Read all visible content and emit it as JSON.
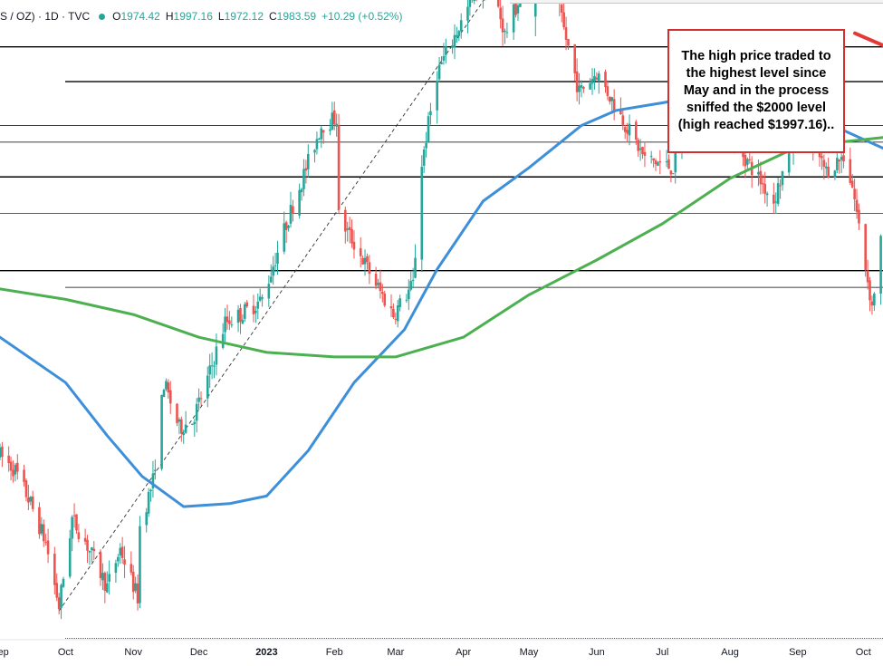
{
  "legend": {
    "symbol": "S / OZ) · 1D · TVC",
    "open_label": "O",
    "open": "1974.42",
    "high_label": "H",
    "high": "1997.16",
    "low_label": "L",
    "low": "1972.12",
    "close_label": "C",
    "close": "1983.59",
    "change": "+10.29 (+0.52%)"
  },
  "annotation": {
    "text": "The high price traded to the highest level since May and in the process sniffed the $2000 level (high reached $1997.16)..",
    "border_color": "#d32f2f"
  },
  "colors": {
    "up": "#26a69a",
    "down": "#ef5350",
    "ma_fast": "#3d8fd9",
    "ma_slow": "#4caf50",
    "arrow": "#e53935"
  },
  "chart_data": {
    "type": "line",
    "x_axis_type": "date",
    "x_range": [
      "2022-09-01",
      "2023-10-10"
    ],
    "y_range": [
      1600,
      2005
    ],
    "grid": false,
    "x_tick_labels": [
      {
        "date": "2022-09-01",
        "label": "Sep"
      },
      {
        "date": "2022-10-01",
        "label": "Oct"
      },
      {
        "date": "2022-11-01",
        "label": "Nov"
      },
      {
        "date": "2022-12-01",
        "label": "Dec"
      },
      {
        "date": "2023-01-01",
        "label": "2023"
      },
      {
        "date": "2023-02-01",
        "label": "Feb"
      },
      {
        "date": "2023-03-01",
        "label": "Mar"
      },
      {
        "date": "2023-04-01",
        "label": "Apr"
      },
      {
        "date": "2023-05-01",
        "label": "May"
      },
      {
        "date": "2023-06-01",
        "label": "Jun"
      },
      {
        "date": "2023-07-01",
        "label": "Jul"
      },
      {
        "date": "2023-08-01",
        "label": "Aug"
      },
      {
        "date": "2023-09-01",
        "label": "Sep"
      },
      {
        "date": "2023-10-01",
        "label": "Oct"
      }
    ],
    "price_path": [
      [
        "2022-09-01",
        1722
      ],
      [
        "2022-09-08",
        1712
      ],
      [
        "2022-09-15",
        1690
      ],
      [
        "2022-09-22",
        1664
      ],
      [
        "2022-09-28",
        1622
      ],
      [
        "2022-10-04",
        1680
      ],
      [
        "2022-10-10",
        1665
      ],
      [
        "2022-10-20",
        1635
      ],
      [
        "2022-10-26",
        1660
      ],
      [
        "2022-11-03",
        1628
      ],
      [
        "2022-11-04",
        1675
      ],
      [
        "2022-11-10",
        1705
      ],
      [
        "2022-11-15",
        1770
      ],
      [
        "2022-11-22",
        1740
      ],
      [
        "2022-11-28",
        1745
      ],
      [
        "2022-12-05",
        1772
      ],
      [
        "2022-12-13",
        1810
      ],
      [
        "2022-12-20",
        1815
      ],
      [
        "2022-12-30",
        1825
      ],
      [
        "2023-01-10",
        1875
      ],
      [
        "2023-01-26",
        1940
      ],
      [
        "2023-02-02",
        1945
      ],
      [
        "2023-02-03",
        1880
      ],
      [
        "2023-02-10",
        1862
      ],
      [
        "2023-02-22",
        1830
      ],
      [
        "2023-02-28",
        1815
      ],
      [
        "2023-03-09",
        1835
      ],
      [
        "2023-03-13",
        1915
      ],
      [
        "2023-03-20",
        1975
      ],
      [
        "2023-04-04",
        2020
      ],
      [
        "2023-04-13",
        2040
      ],
      [
        "2023-04-20",
        2000
      ],
      [
        "2023-05-04",
        2050
      ],
      [
        "2023-05-15",
        2015
      ],
      [
        "2023-05-24",
        1962
      ],
      [
        "2023-06-01",
        1975
      ],
      [
        "2023-06-23",
        1918
      ],
      [
        "2023-07-06",
        1912
      ],
      [
        "2023-07-20",
        1975
      ],
      [
        "2023-07-27",
        1945
      ],
      [
        "2023-08-21",
        1890
      ],
      [
        "2023-09-01",
        1940
      ],
      [
        "2023-09-14",
        1910
      ],
      [
        "2023-09-22",
        1920
      ],
      [
        "2023-09-26",
        1900
      ],
      [
        "2023-10-05",
        1820
      ],
      [
        "2023-10-09",
        1864
      ]
    ],
    "series": [
      {
        "values": [
          [
            "2022-09-01",
            1800
          ],
          [
            "2022-10-01",
            1770
          ],
          [
            "2022-10-20",
            1735
          ],
          [
            "2022-11-05",
            1708
          ],
          [
            "2022-11-24",
            1688
          ],
          [
            "2022-12-15",
            1690
          ],
          [
            "2023-01-01",
            1695
          ],
          [
            "2023-01-20",
            1725
          ],
          [
            "2023-02-10",
            1770
          ],
          [
            "2023-03-05",
            1805
          ],
          [
            "2023-03-20",
            1845
          ],
          [
            "2023-04-10",
            1890
          ],
          [
            "2023-05-01",
            1912
          ],
          [
            "2023-05-25",
            1940
          ],
          [
            "2023-06-10",
            1950
          ],
          [
            "2023-07-01",
            1955
          ],
          [
            "2023-07-20",
            1960
          ],
          [
            "2023-08-01",
            1975
          ],
          [
            "2023-08-15",
            1965
          ],
          [
            "2023-09-01",
            1948
          ],
          [
            "2023-09-20",
            1938
          ],
          [
            "2023-10-10",
            1925
          ]
        ]
      },
      {
        "values": [
          [
            "2022-09-01",
            1832
          ],
          [
            "2022-10-01",
            1825
          ],
          [
            "2022-11-01",
            1815
          ],
          [
            "2022-12-01",
            1800
          ],
          [
            "2023-01-01",
            1790
          ],
          [
            "2023-02-01",
            1787
          ],
          [
            "2023-03-01",
            1787
          ],
          [
            "2023-04-01",
            1800
          ],
          [
            "2023-05-01",
            1828
          ],
          [
            "2023-06-01",
            1851
          ],
          [
            "2023-07-01",
            1875
          ],
          [
            "2023-08-01",
            1905
          ],
          [
            "2023-09-01",
            1926
          ],
          [
            "2023-10-10",
            1932
          ]
        ]
      }
    ],
    "candles": [
      {
        "date": "2023-05-04",
        "open": 2012,
        "high": 2072,
        "low": 1999,
        "close": 2045
      }
    ],
    "horizontal_levels": [
      2048,
      2028,
      1992,
      1969,
      1940,
      1929,
      1906,
      1882,
      1844,
      1833,
      1601
    ],
    "trendline": {
      "from": [
        "2022-09-28",
        1619
      ],
      "to": [
        "2023-05-04",
        2072
      ],
      "style": "dashed"
    },
    "annotation_arrow": {
      "from": [
        "2023-09-23",
        2001
      ],
      "to": [
        "2023-10-10",
        1993
      ]
    }
  }
}
